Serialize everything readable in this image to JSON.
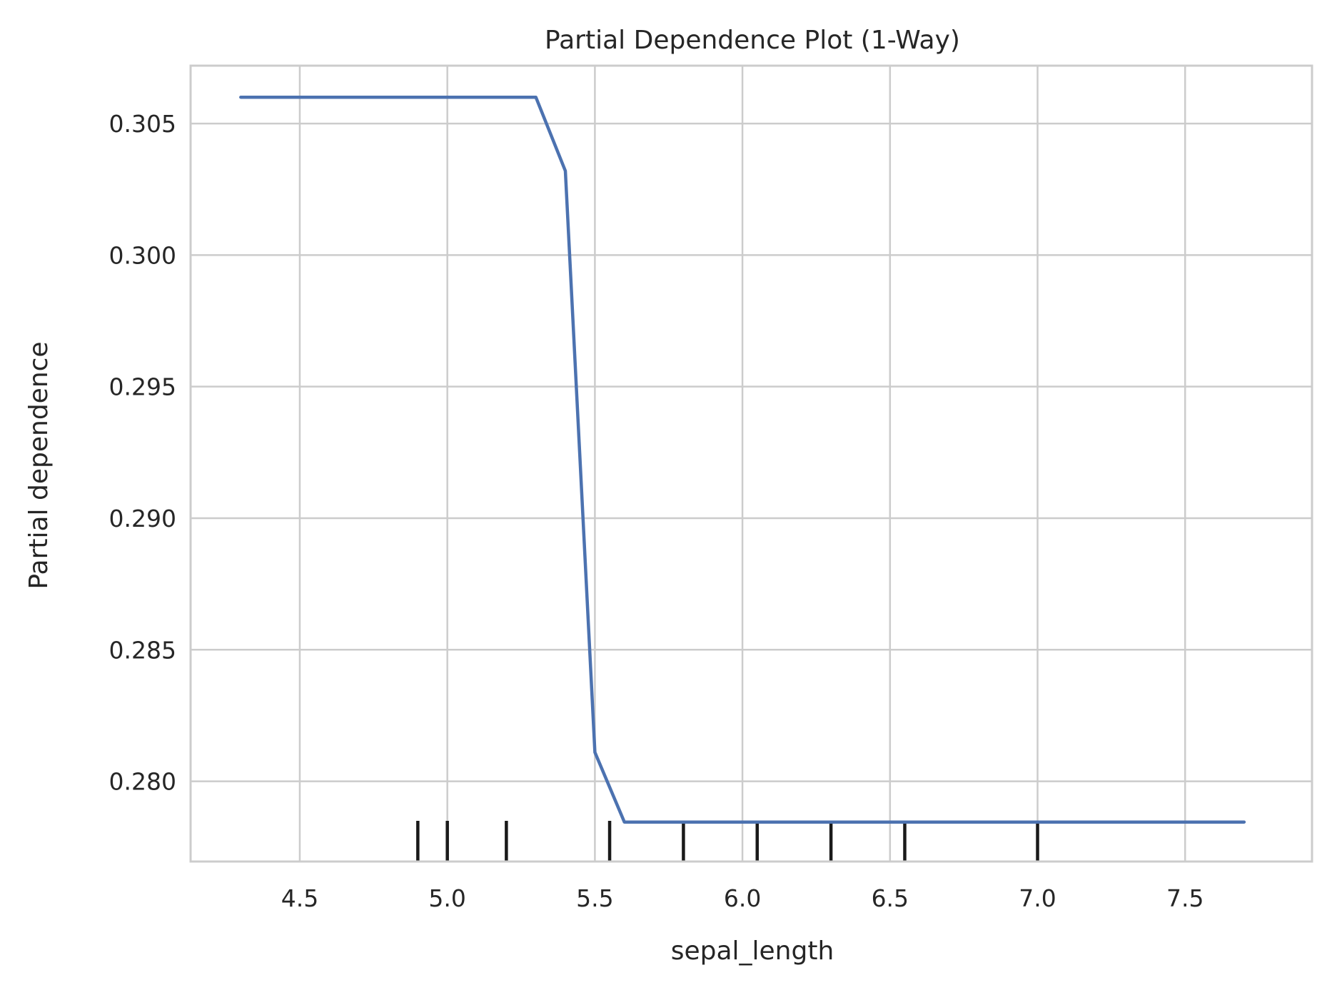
{
  "chart_data": {
    "type": "line",
    "title": "Partial Dependence Plot (1-Way)",
    "xlabel": "sepal_length",
    "ylabel": "Partial dependence",
    "xlim": [
      4.13,
      7.93
    ],
    "ylim": [
      0.27695,
      0.3072
    ],
    "xticks": [
      4.5,
      5.0,
      5.5,
      6.0,
      6.5,
      7.0,
      7.5
    ],
    "xtick_labels": [
      "4.5",
      "5.0",
      "5.5",
      "6.0",
      "6.5",
      "7.0",
      "7.5"
    ],
    "yticks": [
      0.28,
      0.285,
      0.29,
      0.295,
      0.3,
      0.305
    ],
    "ytick_labels": [
      "0.280",
      "0.285",
      "0.290",
      "0.295",
      "0.300",
      "0.305"
    ],
    "grid": true,
    "series": [
      {
        "x": [
          4.3,
          5.3,
          5.4,
          5.5,
          5.6,
          7.7
        ],
        "y": [
          0.306,
          0.306,
          0.3032,
          0.2811,
          0.27845,
          0.27845
        ]
      }
    ],
    "deciles": [
      4.9,
      5.0,
      5.2,
      5.55,
      5.8,
      6.05,
      6.3,
      6.55,
      7.0
    ],
    "colors": {
      "line": "#4c72b0",
      "grid": "#cccccc",
      "spine": "#cccccc",
      "deciles": "#1a1a1a",
      "text": "#262626"
    }
  }
}
